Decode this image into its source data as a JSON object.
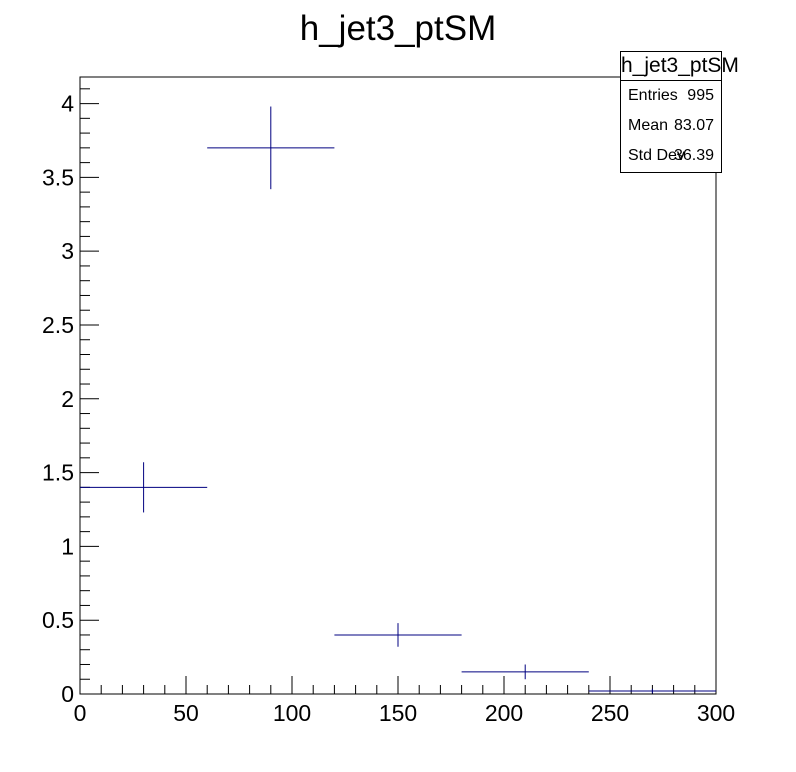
{
  "chart_data": {
    "type": "histogram",
    "title": "h_jet3_ptSM",
    "xlabel": "",
    "ylabel": "",
    "xlim": [
      0,
      300
    ],
    "ylim": [
      0,
      4.18
    ],
    "x_ticks": [
      0,
      50,
      100,
      150,
      200,
      250,
      300
    ],
    "y_ticks": [
      0,
      0.5,
      1,
      1.5,
      2,
      2.5,
      3,
      3.5,
      4
    ],
    "x_tick_labels": [
      "0",
      "50",
      "100",
      "150",
      "200",
      "250",
      "300"
    ],
    "y_tick_labels": [
      "0",
      "0.5",
      "1",
      "1.5",
      "2",
      "2.5",
      "3",
      "3.5",
      "4"
    ],
    "bins": [
      {
        "x_low": 0,
        "x_high": 60,
        "y": 1.4,
        "err": 0.17
      },
      {
        "x_low": 60,
        "x_high": 120,
        "y": 3.7,
        "err": 0.28
      },
      {
        "x_low": 120,
        "x_high": 180,
        "y": 0.4,
        "err": 0.08
      },
      {
        "x_low": 180,
        "x_high": 240,
        "y": 0.15,
        "err": 0.05
      },
      {
        "x_low": 240,
        "x_high": 300,
        "y": 0.02,
        "err": 0.015
      }
    ],
    "series_color": "#000080",
    "grid": false,
    "stats_box": {
      "title": "h_jet3_ptSM",
      "entries_label": "Entries",
      "entries_value": "995",
      "mean_label": "Mean",
      "mean_value": "83.07",
      "stddev_label": "Std Dev",
      "stddev_value": "36.39"
    }
  }
}
